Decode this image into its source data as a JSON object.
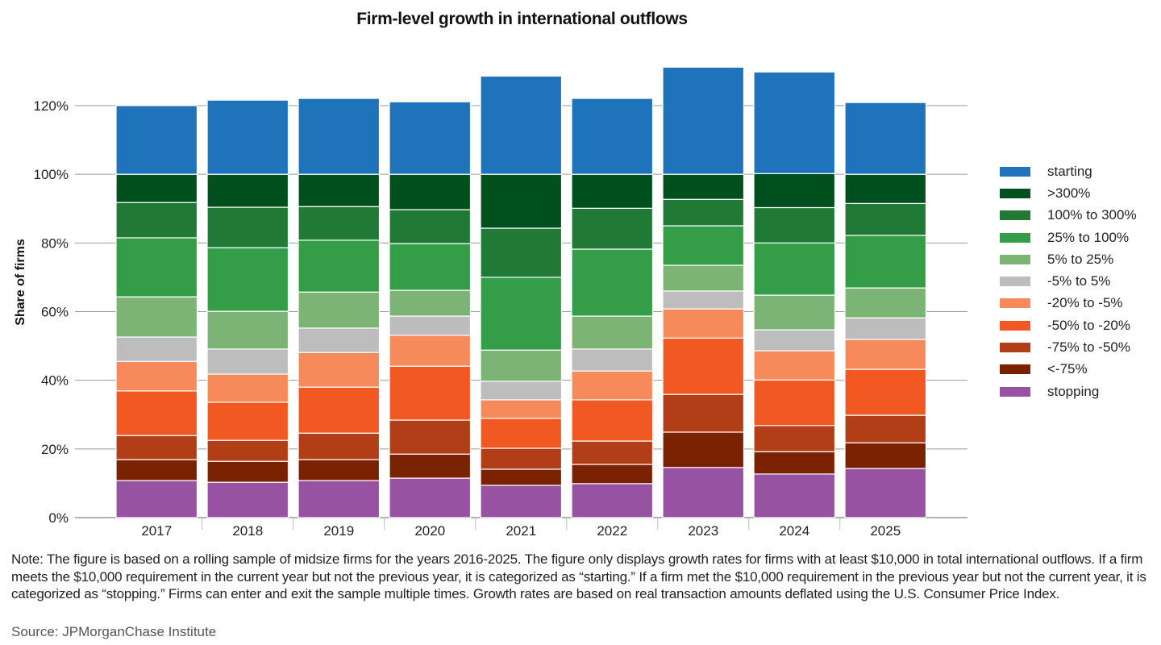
{
  "chart_data": {
    "type": "bar",
    "stacked": true,
    "title": "Firm-level growth in international outflows",
    "xlabel": "",
    "ylabel": "Share of firms",
    "ylim": [
      0,
      120
    ],
    "yticks": [
      0,
      20,
      40,
      60,
      80,
      100,
      120
    ],
    "ytick_labels": [
      "0%",
      "20%",
      "40%",
      "60%",
      "80%",
      "100%",
      "120%"
    ],
    "grid": true,
    "legend_position": "right",
    "categories": [
      "2017",
      "2018",
      "2019",
      "2020",
      "2021",
      "2022",
      "2023",
      "2024",
      "2025"
    ],
    "series": [
      {
        "name": "stopping",
        "color": "#9752A1",
        "values": [
          10.8,
          10.3,
          10.8,
          11.5,
          9.4,
          9.9,
          14.6,
          12.7,
          14.3
        ]
      },
      {
        "name": "<-75%",
        "color": "#7A2200",
        "values": [
          6.1,
          6.1,
          6.1,
          7.0,
          4.7,
          5.6,
          10.3,
          6.5,
          7.5
        ]
      },
      {
        "name": "-75% to -50%",
        "color": "#B23E17",
        "values": [
          7.0,
          6.1,
          7.7,
          9.9,
          6.1,
          6.8,
          11.0,
          7.6,
          8.0
        ]
      },
      {
        "name": "-50% to -20%",
        "color": "#F25822",
        "values": [
          13.0,
          11.1,
          13.4,
          15.7,
          8.7,
          12.0,
          16.4,
          13.3,
          13.4
        ]
      },
      {
        "name": "-20% to -5%",
        "color": "#F68A5A",
        "values": [
          8.6,
          8.2,
          10.1,
          9.0,
          5.4,
          8.4,
          8.5,
          8.5,
          8.7
        ]
      },
      {
        "name": "-5% to 5%",
        "color": "#BDBDBD",
        "values": [
          7.1,
          7.3,
          7.1,
          5.6,
          5.4,
          6.4,
          5.2,
          6.1,
          6.3
        ]
      },
      {
        "name": "5% to 25%",
        "color": "#7BB474",
        "values": [
          11.7,
          11.0,
          10.5,
          7.5,
          9.1,
          9.6,
          7.5,
          10.1,
          8.7
        ]
      },
      {
        "name": "25% to 100%",
        "color": "#339D48",
        "values": [
          17.2,
          18.5,
          15.1,
          13.6,
          21.2,
          19.5,
          11.5,
          15.2,
          15.3
        ]
      },
      {
        "name": "100% to 300%",
        "color": "#207A36",
        "values": [
          10.3,
          11.8,
          9.8,
          9.9,
          14.3,
          11.9,
          7.7,
          10.3,
          9.3
        ]
      },
      {
        "name": ">300%",
        "color": "#00501E",
        "values": [
          8.2,
          9.6,
          9.4,
          10.3,
          15.7,
          9.9,
          7.3,
          9.9,
          8.5
        ]
      },
      {
        "name": "starting",
        "color": "#1E73BA",
        "values": [
          20.0,
          21.6,
          22.1,
          21.1,
          28.6,
          22.1,
          31.2,
          29.6,
          20.9
        ]
      }
    ],
    "legend_order": [
      "starting",
      ">300%",
      "100% to 300%",
      "25% to 100%",
      "5% to 25%",
      "-5% to 5%",
      "-20% to -5%",
      "-50% to -20%",
      "-75% to -50%",
      "<-75%",
      "stopping"
    ]
  },
  "notes": "Note: The figure is based on a rolling sample of midsize firms for the years 2016-2025. The figure only displays growth rates for firms with at least $10,000 in total international outflows. If a firm meets the $10,000 requirement in the current year but not the previous year, it is categorized as “starting.” If a firm met the $10,000 requirement in the previous year but not the current year, it is categorized as “stopping.” Firms can enter and exit the sample multiple times. Growth rates are based on real transaction amounts deflated using the U.S. Consumer Price Index.",
  "source": "Source: JPMorganChase Institute"
}
